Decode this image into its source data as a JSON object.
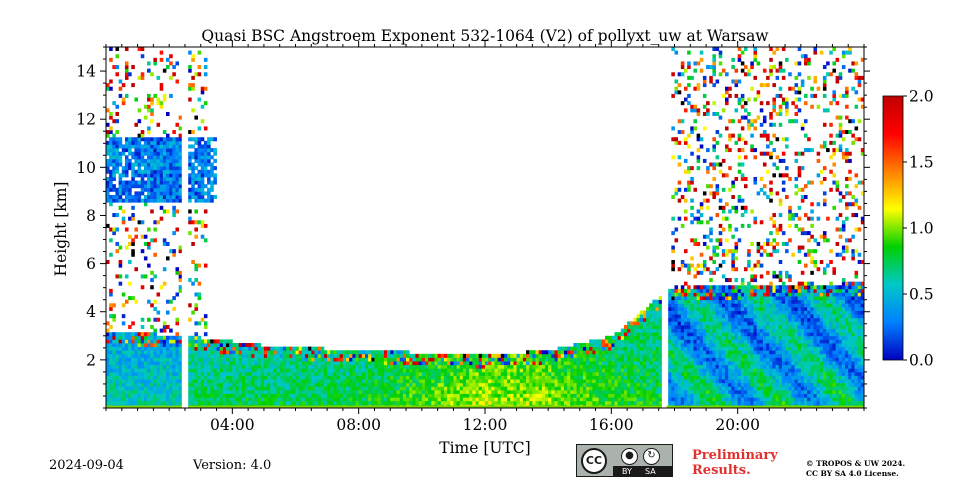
{
  "chart_data": {
    "type": "heatmap",
    "title": "Quasi BSC Angstroem Exponent 532-1064 (V2) of pollyxt_uw at Warsaw",
    "xlabel": "Time [UTC]",
    "ylabel": "Height [km]",
    "x_unit": "hours UTC",
    "xlim": [
      0,
      24
    ],
    "ylim": [
      0,
      15
    ],
    "x_ticks": [
      {
        "value": 4,
        "label": "04:00"
      },
      {
        "value": 8,
        "label": "08:00"
      },
      {
        "value": 12,
        "label": "12:00"
      },
      {
        "value": 16,
        "label": "16:00"
      },
      {
        "value": 20,
        "label": "20:00"
      }
    ],
    "y_ticks": [
      {
        "value": 2,
        "label": "2"
      },
      {
        "value": 4,
        "label": "4"
      },
      {
        "value": 6,
        "label": "6"
      },
      {
        "value": 8,
        "label": "8"
      },
      {
        "value": 10,
        "label": "10"
      },
      {
        "value": 12,
        "label": "12"
      },
      {
        "value": 14,
        "label": "14"
      }
    ],
    "colorbar": {
      "range": [
        0.0,
        2.0
      ],
      "ticks": [
        {
          "value": 0.0,
          "label": "0.0"
        },
        {
          "value": 0.5,
          "label": "0.5"
        },
        {
          "value": 1.0,
          "label": "1.0"
        },
        {
          "value": 1.5,
          "label": "1.5"
        },
        {
          "value": 2.0,
          "label": "2.0"
        }
      ],
      "colormap": [
        "#0000c0",
        "#0080ff",
        "#00c8c8",
        "#00d000",
        "#ffff00",
        "#ff8000",
        "#ff0000",
        "#c00000"
      ]
    },
    "data_gaps_hours": [
      [
        2.4,
        2.6
      ],
      [
        17.6,
        17.75
      ]
    ],
    "regions": [
      {
        "description": "boundary layer",
        "t_start": 0,
        "t_end": 24,
        "h_bottom": 0,
        "h_top_profile": [
          [
            0,
            3.2
          ],
          [
            2.5,
            3.0
          ],
          [
            5,
            2.6
          ],
          [
            8,
            2.4
          ],
          [
            12,
            2.2
          ],
          [
            14,
            2.4
          ],
          [
            16,
            3.0
          ],
          [
            17.6,
            4.8
          ],
          [
            17.75,
            5.0
          ],
          [
            24,
            5.2
          ]
        ],
        "typical_value": 0.9
      },
      {
        "description": "cirrus cloud",
        "t_start": 0,
        "t_end": 3.5,
        "h_bottom": 8.6,
        "h_top": 11.2,
        "typical_value": 0.3
      }
    ]
  },
  "footer": {
    "date": "2024-09-04",
    "version": "Version: 4.0",
    "license_badge": {
      "cc": "CC",
      "by": "BY",
      "sa": "SA"
    },
    "preliminary_line1": "Preliminary",
    "preliminary_line2": "Results.",
    "copyright_line1": "© TROPOS & UW 2024.",
    "copyright_line2": "CC BY SA 4.0 License."
  },
  "colors": {
    "preliminary_text": "#e0312e",
    "badge_bg": "#aab2ab",
    "badge_dark": "#1a1a1a"
  }
}
